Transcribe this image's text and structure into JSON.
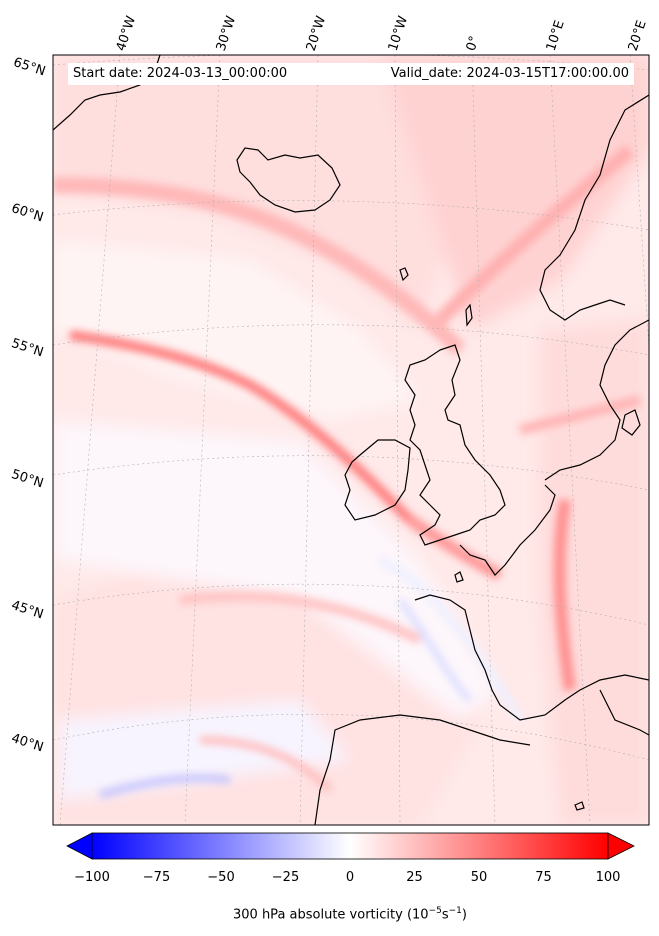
{
  "header": {
    "start_date": "Start date: 2024-03-13_00:00:00",
    "valid_date": "Valid_date: 2024-03-15T17:00:00.00"
  },
  "lat_labels": [
    "65°N",
    "60°N",
    "55°N",
    "50°N",
    "45°N",
    "40°N"
  ],
  "lon_labels": [
    "40°W",
    "30°W",
    "20°W",
    "10°W",
    "0°",
    "10°E",
    "20°E"
  ],
  "colorbar": {
    "ticks": [
      "−100",
      "−75",
      "−50",
      "−25",
      "0",
      "25",
      "50",
      "75",
      "100"
    ],
    "label_main": "300 hPa absolute vorticity (10",
    "label_exp1": "−5",
    "label_mid": "s",
    "label_exp2": "−1",
    "label_end": ")",
    "min_color": "#0000ff",
    "mid_color": "#ffffff",
    "max_color": "#ff0000"
  }
}
